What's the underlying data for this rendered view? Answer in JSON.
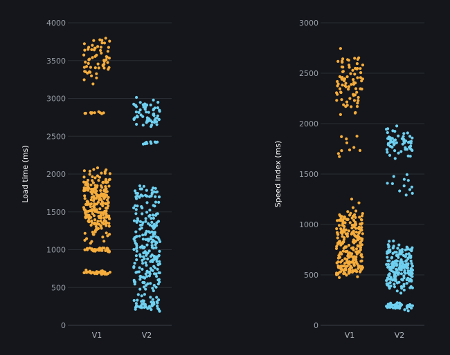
{
  "colors": {
    "background": "#14161b",
    "V1": "#f6ad3c",
    "V2": "#6fd0f0",
    "grid": "#2a2d33",
    "tick_text": "#9aa0a8"
  },
  "chart_data": [
    {
      "type": "scatter",
      "style": "jitter-strip",
      "title": "",
      "xlabel": "",
      "ylabel": "Load time (ms)",
      "categories": [
        "V1",
        "V2"
      ],
      "ylim": [
        0,
        4000
      ],
      "yticks": [
        0,
        500,
        1000,
        1500,
        2000,
        2500,
        3000,
        3500,
        4000
      ],
      "grid": true,
      "series": [
        {
          "category": "V1",
          "clusters": [
            {
              "center": 700,
              "spread": 30,
              "count": 40
            },
            {
              "center": 1000,
              "spread": 30,
              "count": 40
            },
            {
              "center": 1600,
              "spread": 620,
              "count": 230
            },
            {
              "center": 2810,
              "spread": 20,
              "count": 10
            },
            {
              "center": 3520,
              "spread": 380,
              "count": 60
            }
          ]
        },
        {
          "category": "V2",
          "clusters": [
            {
              "center": 270,
              "spread": 80,
              "count": 40
            },
            {
              "center": 1000,
              "spread": 850,
              "count": 210
            },
            {
              "center": 1700,
              "spread": 180,
              "count": 30
            },
            {
              "center": 2410,
              "spread": 20,
              "count": 10
            },
            {
              "center": 2800,
              "spread": 250,
              "count": 60
            }
          ]
        }
      ]
    },
    {
      "type": "scatter",
      "style": "jitter-strip",
      "title": "",
      "xlabel": "",
      "ylabel": "Speed index (ms)",
      "categories": [
        "V1",
        "V2"
      ],
      "ylim": [
        0,
        3000
      ],
      "yticks": [
        0,
        500,
        1000,
        1500,
        2000,
        2500,
        3000
      ],
      "grid": true,
      "series": [
        {
          "category": "V1",
          "clusters": [
            {
              "center": 620,
              "spread": 220,
              "count": 110
            },
            {
              "center": 930,
              "spread": 330,
              "count": 150
            },
            {
              "center": 1800,
              "spread": 120,
              "count": 10
            },
            {
              "center": 2400,
              "spread": 380,
              "count": 80
            }
          ]
        },
        {
          "category": "V2",
          "clusters": [
            {
              "center": 190,
              "spread": 25,
              "count": 50
            },
            {
              "center": 580,
              "spread": 320,
              "count": 200
            },
            {
              "center": 1400,
              "spread": 150,
              "count": 12
            },
            {
              "center": 1800,
              "spread": 200,
              "count": 60
            }
          ]
        }
      ]
    }
  ]
}
